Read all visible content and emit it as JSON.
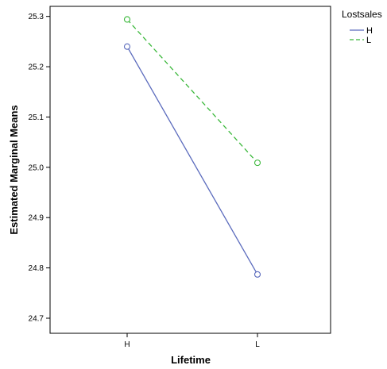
{
  "chart_data": {
    "type": "line",
    "title": "",
    "xlabel": "Lifetime",
    "ylabel": "Estimated Marginal Means",
    "categories": [
      "H",
      "L"
    ],
    "ylim": [
      24.67,
      25.32
    ],
    "yticks": [
      "24.7",
      "24.8",
      "24.9",
      "25.0",
      "25.1",
      "25.2",
      "25.3"
    ],
    "grid": false,
    "legend": {
      "title": "Lostsales",
      "placement": "top-right"
    },
    "series": [
      {
        "name": "H",
        "values": [
          25.24,
          24.787
        ],
        "color": "#5b6bbd",
        "dash": "solid",
        "marker": "circle"
      },
      {
        "name": "L",
        "values": [
          25.294,
          25.009
        ],
        "color": "#3ab83a",
        "dash": "dashed",
        "marker": "circle"
      }
    ]
  }
}
